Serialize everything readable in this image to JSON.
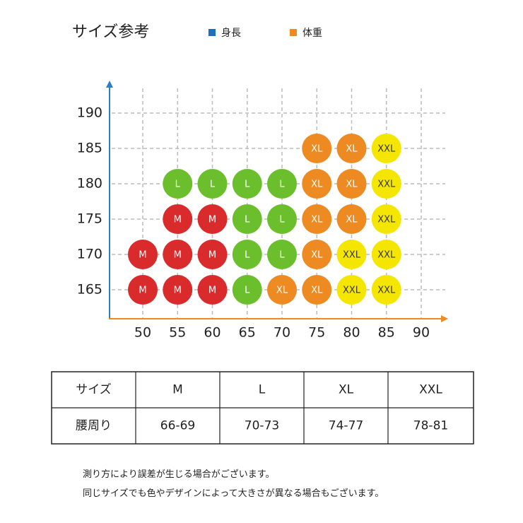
{
  "title": "サイズ参考",
  "legend": [
    {
      "name": "身長",
      "color": "#1a6fc0"
    },
    {
      "name": "体重",
      "color": "#ee8a20"
    }
  ],
  "size_grid": {
    "xticks": [
      50,
      55,
      60,
      65,
      70,
      75,
      80,
      85,
      90
    ],
    "yticks": [
      165,
      170,
      175,
      180,
      185,
      190
    ],
    "colors": {
      "M": "#d92b2b",
      "L": "#6cbf2c",
      "XL": "#ee8a22",
      "XXL": "#f5e600"
    },
    "cells": [
      {
        "x": 50,
        "y": 165,
        "label": "M"
      },
      {
        "x": 55,
        "y": 165,
        "label": "M"
      },
      {
        "x": 60,
        "y": 165,
        "label": "M"
      },
      {
        "x": 65,
        "y": 165,
        "label": "L"
      },
      {
        "x": 70,
        "y": 165,
        "label": "XL"
      },
      {
        "x": 75,
        "y": 165,
        "label": "XL"
      },
      {
        "x": 80,
        "y": 165,
        "label": "XXL"
      },
      {
        "x": 85,
        "y": 165,
        "label": "XXL"
      },
      {
        "x": 50,
        "y": 170,
        "label": "M"
      },
      {
        "x": 55,
        "y": 170,
        "label": "M"
      },
      {
        "x": 60,
        "y": 170,
        "label": "M"
      },
      {
        "x": 65,
        "y": 170,
        "label": "L"
      },
      {
        "x": 70,
        "y": 170,
        "label": "L"
      },
      {
        "x": 75,
        "y": 170,
        "label": "XL"
      },
      {
        "x": 80,
        "y": 170,
        "label": "XXL"
      },
      {
        "x": 85,
        "y": 170,
        "label": "XXL"
      },
      {
        "x": 55,
        "y": 175,
        "label": "M"
      },
      {
        "x": 60,
        "y": 175,
        "label": "M"
      },
      {
        "x": 65,
        "y": 175,
        "label": "L"
      },
      {
        "x": 70,
        "y": 175,
        "label": "L"
      },
      {
        "x": 75,
        "y": 175,
        "label": "XL"
      },
      {
        "x": 80,
        "y": 175,
        "label": "XL"
      },
      {
        "x": 85,
        "y": 175,
        "label": "XXL"
      },
      {
        "x": 55,
        "y": 180,
        "label": "L"
      },
      {
        "x": 60,
        "y": 180,
        "label": "L"
      },
      {
        "x": 65,
        "y": 180,
        "label": "L"
      },
      {
        "x": 70,
        "y": 180,
        "label": "L"
      },
      {
        "x": 75,
        "y": 180,
        "label": "XL"
      },
      {
        "x": 80,
        "y": 180,
        "label": "XL"
      },
      {
        "x": 85,
        "y": 180,
        "label": "XXL"
      },
      {
        "x": 75,
        "y": 185,
        "label": "XL"
      },
      {
        "x": 80,
        "y": 185,
        "label": "XL"
      },
      {
        "x": 85,
        "y": 185,
        "label": "XXL"
      }
    ]
  },
  "table": {
    "rows": [
      [
        "サイズ",
        "M",
        "L",
        "XL",
        "XXL"
      ],
      [
        "腰周り",
        "66-69",
        "70-73",
        "74-77",
        "78-81"
      ]
    ]
  },
  "notes": [
    "測り方により誤差が生じる場合がございます。",
    "同じサイズでも色やデザインによって大きさが異なる場合もございます。"
  ]
}
